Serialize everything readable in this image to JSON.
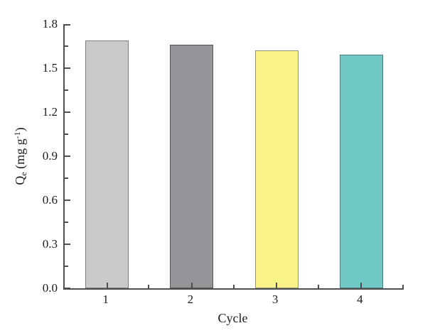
{
  "chart_data": {
    "type": "bar",
    "categories": [
      "1",
      "2",
      "3",
      "4"
    ],
    "values": [
      1.69,
      1.66,
      1.62,
      1.59
    ],
    "bar_colors": [
      "#c9cacc",
      "#939598",
      "#faf488",
      "#70c8c5"
    ],
    "bar_border_colors": [
      "#7d7d7d",
      "#565656",
      "#94947c",
      "#4e7f7c"
    ],
    "title": "",
    "xlabel": "Cycle",
    "ylabel": {
      "base": "Q",
      "sub": "e",
      "mid": " (mg g",
      "sup": "-1",
      "end": ")"
    },
    "ylim": [
      0,
      1.8
    ],
    "ytick_step": 0.3,
    "yminor_step": 0.15,
    "ytick_labels": [
      "0.0",
      "0.3",
      "0.6",
      "0.9",
      "1.2",
      "1.5",
      "1.8"
    ],
    "xminor": "category-boundaries",
    "grid": false,
    "legend": "none",
    "spines": [
      "left",
      "bottom"
    ],
    "tick_direction": "in",
    "axis_color": "#4f4f4f",
    "text_color": "#1c1c1c",
    "background_color": "#ffffff"
  }
}
